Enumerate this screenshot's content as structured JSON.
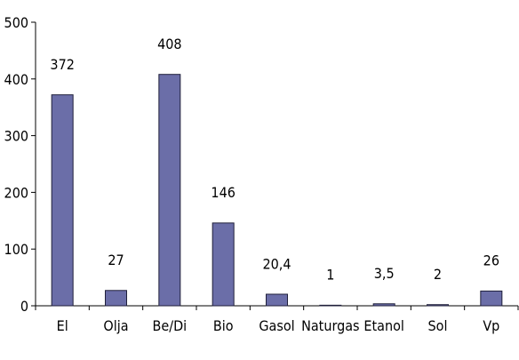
{
  "chart_data": {
    "type": "bar",
    "categories": [
      "El",
      "Olja",
      "Be/Di",
      "Bio",
      "Gasol",
      "Naturgas",
      "Etanol",
      "Sol",
      "Vp"
    ],
    "values": [
      372,
      27,
      408,
      146,
      20.4,
      1,
      3.5,
      2,
      26
    ],
    "data_labels": [
      "372",
      "27",
      "408",
      "146",
      "20,4",
      "1",
      "3,5",
      "2",
      "26"
    ],
    "yticks": [
      0,
      100,
      200,
      300,
      400,
      500
    ],
    "ylim": [
      0,
      500
    ],
    "title": "",
    "xlabel": "",
    "ylabel": "",
    "grid": false,
    "legend": "none",
    "bar_color": "#6b6ea8",
    "bar_edge_color": "#1f1f3a",
    "axis_color": "#000000"
  }
}
